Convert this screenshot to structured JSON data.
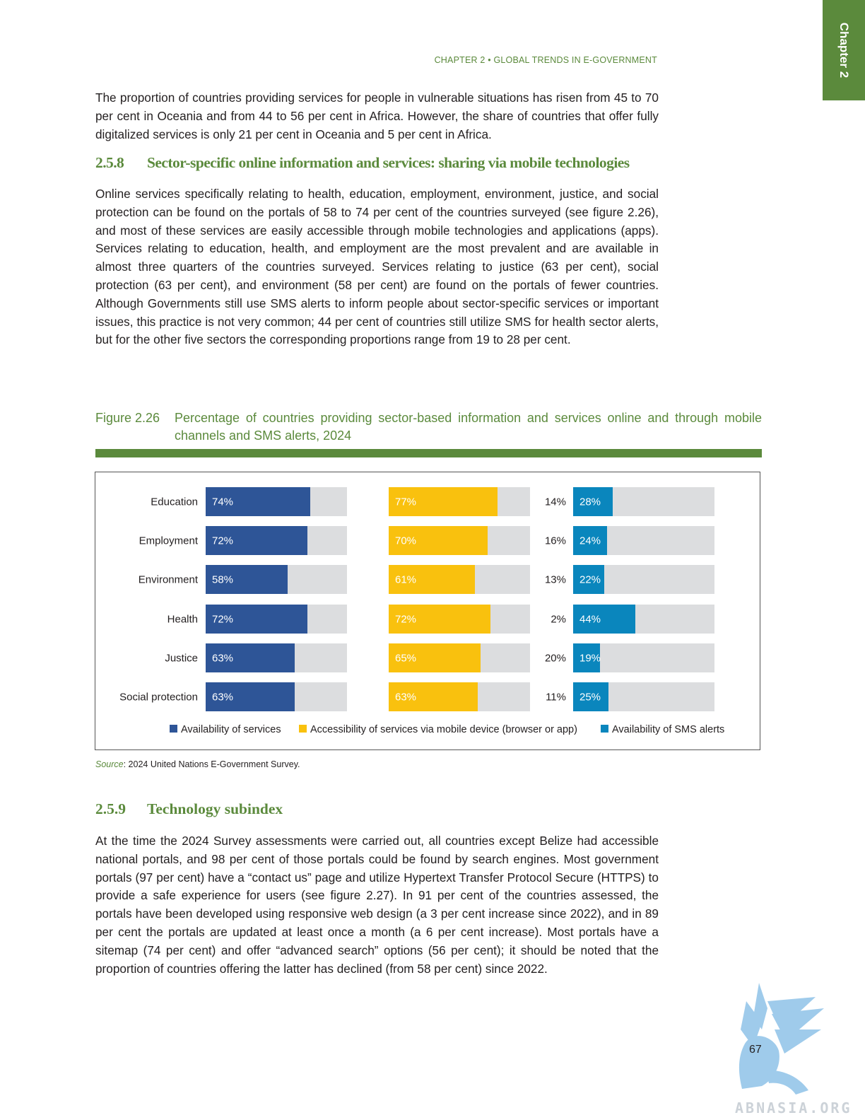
{
  "chapter_tab": "Chapter 2",
  "running_head": "CHAPTER 2 • GLOBAL TRENDS IN E-GOVERNMENT",
  "para_1": "The proportion of countries providing services for people in vulnerable situations has risen from 45 to 70 per cent in Oceania and from 44 to 56 per cent in Africa. However, the share of countries that offer fully digitalized services is only 21 per cent in Oceania and 5 per cent in Africa.",
  "section_258": {
    "number": "2.5.8",
    "title": "Sector-specific online information and services: sharing via mobile technologies"
  },
  "para_2": "Online services specifically relating to health, education, employment, environment, justice, and social protection can be found on the portals of 58 to 74 per cent of the countries surveyed (see figure 2.26), and most of these services are easily accessible through mobile technologies and applications (apps). Services relating to education, health, and employment are the most prevalent and are available in almost three quarters of the countries surveyed. Services relating to justice (63 per cent), social protection (63 per cent), and environment (58 per cent) are found on the portals of fewer countries. Although Governments still use SMS alerts to inform people about sector-specific services or important issues, this practice is not very common; 44 per cent of countries still utilize SMS for health sector alerts, but for the other five sectors the corresponding proportions range from 19 to 28 per cent.",
  "figure": {
    "number": "Figure 2.26",
    "caption": "Percentage of countries providing sector-based information and services online and through mobile channels and SMS alerts, 2024"
  },
  "chart_data": {
    "type": "bar",
    "orientation": "horizontal",
    "categories": [
      "Education",
      "Employment",
      "Environment",
      "Health",
      "Justice",
      "Social protection"
    ],
    "series": [
      {
        "name": "Availability of services",
        "values": [
          74,
          72,
          58,
          72,
          63,
          63
        ],
        "labels": [
          "74%",
          "72%",
          "58%",
          "72%",
          "63%",
          "63%"
        ],
        "color": "#2e5597"
      },
      {
        "name": "Accessibility of services via mobile device (browser or app)",
        "values": [
          77,
          70,
          61,
          72,
          65,
          63
        ],
        "labels": [
          "77%",
          "70%",
          "61%",
          "72%",
          "65%",
          "63%"
        ],
        "color": "#f9c10e"
      },
      {
        "name": "Availability of SMS alerts",
        "values": [
          28,
          24,
          22,
          44,
          19,
          25
        ],
        "labels": [
          "28%",
          "24%",
          "22%",
          "44%",
          "19%",
          "25%"
        ],
        "color": "#0a86bd"
      }
    ],
    "standalone_labels": [
      "14%",
      "16%",
      "13%",
      "2%",
      "20%",
      "11%"
    ],
    "xlim": [
      0,
      100
    ],
    "track_color": "#dcdddf",
    "legend": "bottom",
    "grid": false
  },
  "source": {
    "label": "Source",
    "text": ": 2024 United Nations E-Government Survey."
  },
  "section_259": {
    "number": "2.5.9",
    "title": "Technology subindex"
  },
  "para_3": "At the time the 2024 Survey assessments were carried out, all countries except Belize had accessible national portals, and 98 per cent of those portals could be found by search engines. Most government portals (97 per cent) have a “contact us” page and utilize Hypertext Transfer Protocol Secure (HTTPS) to provide a safe experience for users (see figure 2.27). In 91 per cent of the countries assessed, the portals have been developed using responsive web design (a 3 per cent increase since 2022), and in 89 per cent the portals are updated at least once a month (a 6 per cent increase). Most portals have a sitemap (74 per cent) and offer “advanced search” options (56 per cent); it should be noted that the proportion of countries offering the latter has declined (from 58 per cent) since 2022.",
  "page_number": "67",
  "watermark": "ABNASIA.ORG"
}
